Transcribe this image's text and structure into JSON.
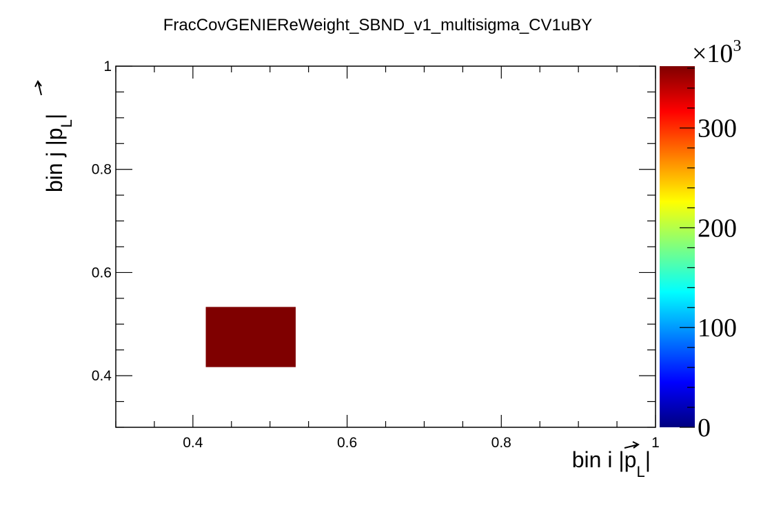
{
  "chart_data": {
    "type": "heatmap",
    "title": "FracCovGENIEReWeight_SBND_v1_multisigma_CV1uBY",
    "xlabel": "bin i |p",
    "xlabel_sub": "L",
    "ylabel": "bin j |p",
    "ylabel_sub": "L",
    "xlim": [
      0.3,
      1.0
    ],
    "ylim": [
      0.3,
      1.0
    ],
    "x_ticks": [
      0.4,
      0.6,
      0.8,
      1
    ],
    "x_tick_labels": [
      "0.4",
      "0.6",
      "0.8",
      "1"
    ],
    "y_ticks": [
      0.4,
      0.6,
      0.8,
      1
    ],
    "y_tick_labels": [
      "0.4",
      "0.6",
      "0.8",
      "1"
    ],
    "cells": [
      {
        "x0": 0.4167,
        "x1": 0.5333,
        "y0": 0.4167,
        "y1": 0.5333,
        "value": 362000
      }
    ],
    "zlim": [
      0,
      362000
    ],
    "z_ticks": [
      0,
      100000,
      200000,
      300000
    ],
    "z_tick_labels": [
      "0",
      "100",
      "200",
      "300"
    ],
    "z_multiplier_base": "×10",
    "z_multiplier_exp": "3",
    "colormap": [
      "#00007f",
      "#0000ff",
      "#007fff",
      "#00ffff",
      "#7fff7f",
      "#ffff00",
      "#ff7f00",
      "#ff0000",
      "#7f0000"
    ],
    "grid": false,
    "legend": "none"
  }
}
